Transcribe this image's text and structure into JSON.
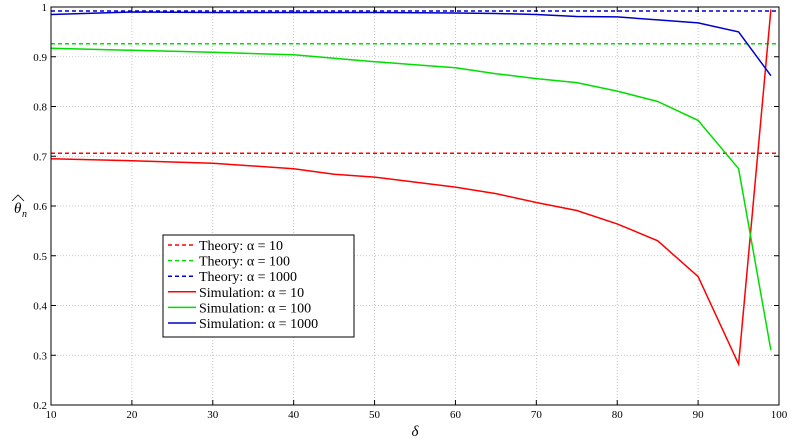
{
  "chart_data": {
    "type": "line",
    "title": "",
    "xlabel": "δ",
    "ylabel": "θ̂n",
    "xlim": [
      10,
      100
    ],
    "ylim": [
      0.2,
      1
    ],
    "xticks": [
      10,
      20,
      30,
      40,
      50,
      60,
      70,
      80,
      90,
      100
    ],
    "yticks": [
      0.2,
      0.3,
      0.4,
      0.5,
      0.6,
      0.7,
      0.8,
      0.9,
      1
    ],
    "ytick_labels": [
      "0.2",
      "0.3",
      "0.4",
      "0.5",
      "0.6",
      "0.7",
      "0.8",
      "0.9",
      "1"
    ],
    "grid": true,
    "legend_position": "center-left",
    "series": [
      {
        "name": "Theory: α = 10",
        "style": "dashed",
        "color": "#ff0000",
        "x": [
          10,
          100
        ],
        "y": [
          0.706,
          0.706
        ]
      },
      {
        "name": "Theory: α = 100",
        "style": "dashed",
        "color": "#00dd00",
        "x": [
          10,
          100
        ],
        "y": [
          0.926,
          0.926
        ]
      },
      {
        "name": "Theory: α = 1000",
        "style": "dashed",
        "color": "#0000cc",
        "x": [
          10,
          100
        ],
        "y": [
          0.992,
          0.992
        ]
      },
      {
        "name": "Simulation: α = 10",
        "style": "solid",
        "color": "#ff0000",
        "x": [
          10,
          20,
          30,
          40,
          45,
          50,
          55,
          60,
          65,
          70,
          75,
          80,
          85,
          90,
          95,
          99
        ],
        "y": [
          0.695,
          0.691,
          0.686,
          0.675,
          0.664,
          0.658,
          0.648,
          0.638,
          0.625,
          0.607,
          0.591,
          0.564,
          0.53,
          0.458,
          0.282,
          0.995
        ]
      },
      {
        "name": "Simulation: α = 100",
        "style": "solid",
        "color": "#00dd00",
        "x": [
          10,
          20,
          30,
          40,
          45,
          50,
          55,
          60,
          65,
          70,
          75,
          80,
          85,
          90,
          95,
          99
        ],
        "y": [
          0.917,
          0.913,
          0.909,
          0.904,
          0.897,
          0.89,
          0.884,
          0.878,
          0.866,
          0.856,
          0.848,
          0.831,
          0.81,
          0.772,
          0.675,
          0.31
        ]
      },
      {
        "name": "Simulation: α = 1000",
        "style": "solid",
        "color": "#0000cc",
        "x": [
          10,
          20,
          30,
          40,
          50,
          60,
          65,
          70,
          75,
          80,
          85,
          90,
          95,
          99
        ],
        "y": [
          0.985,
          0.99,
          0.989,
          0.989,
          0.989,
          0.988,
          0.987,
          0.985,
          0.981,
          0.98,
          0.974,
          0.968,
          0.95,
          0.862
        ]
      }
    ]
  }
}
